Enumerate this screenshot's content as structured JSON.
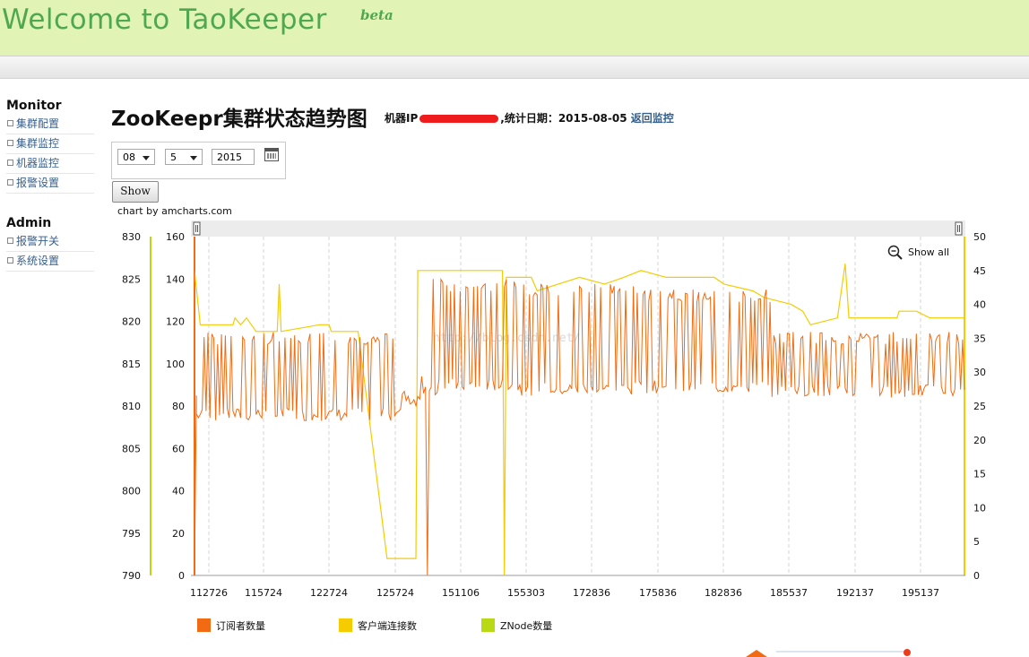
{
  "header": {
    "brand": "Welcome to TaoKeeper",
    "beta": "beta"
  },
  "sidebar": {
    "sections": [
      {
        "title": "Monitor",
        "items": [
          "集群配置",
          "集群监控",
          "机器监控",
          "报警设置"
        ]
      },
      {
        "title": "Admin",
        "items": [
          "报警开关",
          "系统设置"
        ]
      }
    ]
  },
  "page": {
    "title": "ZooKeepr集群状态趋势图",
    "machine_label": "机器IP",
    "date_label": ",统计日期：2015-08-05",
    "back_link": "返回监控"
  },
  "date_picker": {
    "month": "08",
    "day": "5",
    "year": "2015",
    "show_button": "Show"
  },
  "chart_credit": "chart by amcharts.com",
  "show_all": "Show all",
  "colors": {
    "subscribers": "#f26b12",
    "clients": "#f5cc00",
    "znodes": "#b9d915",
    "brand": "#4fa84f",
    "link": "#37608d"
  },
  "chart_data": {
    "type": "line",
    "x_ticks": [
      "112726",
      "115724",
      "122724",
      "125724",
      "151106",
      "155303",
      "172836",
      "175836",
      "182836",
      "185537",
      "192137",
      "195137"
    ],
    "axes": {
      "znode_axis": {
        "ticks": [
          "790",
          "795",
          "800",
          "805",
          "810",
          "815",
          "820",
          "825",
          "830"
        ],
        "range": [
          790,
          830
        ]
      },
      "left_axis": {
        "ticks": [
          "0",
          "20",
          "40",
          "60",
          "80",
          "100",
          "120",
          "140",
          "160"
        ],
        "range": [
          0,
          160
        ]
      },
      "right_axis": {
        "ticks": [
          "0",
          "5",
          "10",
          "15",
          "20",
          "25",
          "30",
          "35",
          "40",
          "45",
          "50"
        ],
        "range": [
          0,
          50
        ]
      }
    },
    "legend": [
      {
        "name": "订阅者数量",
        "color": "#f26b12"
      },
      {
        "name": "客户端连接数",
        "color": "#f5cc00"
      },
      {
        "name": "ZNode数量",
        "color": "#b9d915"
      }
    ],
    "series": [
      {
        "name": "客户端连接数",
        "axis": "right",
        "points": [
          [
            0,
            45
          ],
          [
            3,
            37
          ],
          [
            20,
            37
          ],
          [
            21,
            38
          ],
          [
            24,
            37
          ],
          [
            27,
            38
          ],
          [
            32,
            36
          ],
          [
            43,
            36
          ],
          [
            44,
            43
          ],
          [
            45,
            36
          ],
          [
            65,
            37
          ],
          [
            70,
            37
          ],
          [
            71,
            36
          ],
          [
            85,
            36
          ],
          [
            100,
            2.5
          ],
          [
            115,
            2.5
          ],
          [
            116,
            45
          ],
          [
            160,
            45
          ],
          [
            161,
            0
          ],
          [
            162,
            44
          ],
          [
            175,
            44
          ],
          [
            178,
            42
          ],
          [
            200,
            44
          ],
          [
            213,
            43
          ],
          [
            223,
            44
          ],
          [
            232,
            45
          ],
          [
            245,
            44
          ],
          [
            260,
            44
          ],
          [
            270,
            44
          ],
          [
            275,
            43
          ],
          [
            290,
            42
          ],
          [
            296,
            41
          ],
          [
            310,
            40
          ],
          [
            316,
            39
          ],
          [
            320,
            37
          ],
          [
            334,
            38
          ],
          [
            338,
            46
          ],
          [
            340,
            38
          ],
          [
            365,
            38
          ],
          [
            366,
            39
          ],
          [
            375,
            39
          ],
          [
            382,
            38
          ],
          [
            400,
            38
          ]
        ]
      },
      {
        "name": "订阅者数量",
        "axis": "left",
        "pattern_low": 73,
        "pattern_high": 113,
        "seed": 7,
        "segments": [
          {
            "from": 0,
            "to": 108,
            "low": 73,
            "high": 115
          },
          {
            "from": 108,
            "to": 118,
            "low": 80,
            "high": 88
          },
          {
            "from": 118,
            "to": 128,
            "low": 0,
            "high": 140
          },
          {
            "from": 128,
            "to": 170,
            "low": 87,
            "high": 140
          },
          {
            "from": 170,
            "to": 230,
            "low": 85,
            "high": 138
          },
          {
            "from": 230,
            "to": 300,
            "low": 86,
            "high": 135
          },
          {
            "from": 300,
            "to": 400,
            "low": 84,
            "high": 115
          }
        ]
      }
    ]
  },
  "watermark": "http://blog.csdn.net/"
}
